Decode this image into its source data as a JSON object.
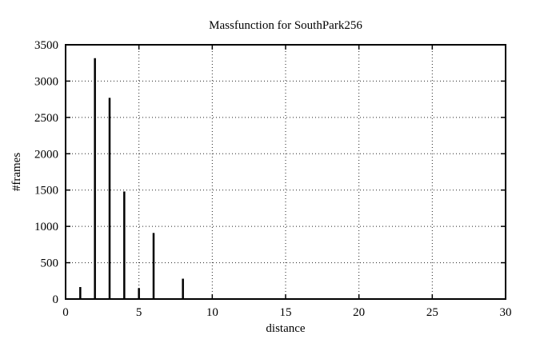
{
  "page": {
    "background_color": "#ffffff",
    "foreground_color": "#000000"
  },
  "chart_data": {
    "type": "bar",
    "style": "impulses",
    "title": "Massfunction for SouthPark256",
    "xlabel": "distance",
    "ylabel": "#frames",
    "xlim": [
      0,
      30
    ],
    "ylim": [
      0,
      3500
    ],
    "x_ticks": [
      0,
      5,
      10,
      15,
      20,
      25,
      30
    ],
    "y_ticks": [
      0,
      500,
      1000,
      1500,
      2000,
      2500,
      3000,
      3500
    ],
    "grid": true,
    "legend": "none",
    "x": [
      1,
      2,
      3,
      4,
      5,
      6,
      8
    ],
    "values": [
      165,
      3315,
      2770,
      1480,
      150,
      910,
      280
    ],
    "line_color": "#000000",
    "grid_color": "#222222"
  }
}
